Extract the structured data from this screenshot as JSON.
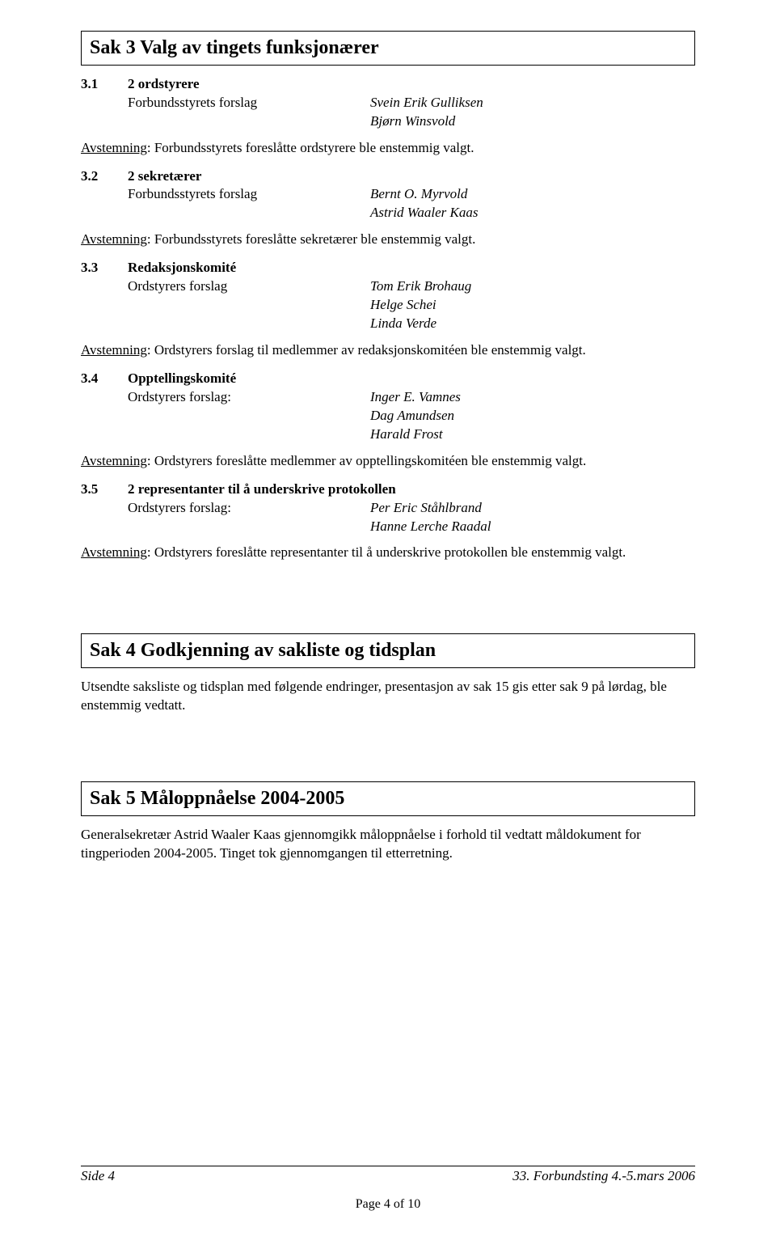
{
  "sak3": {
    "title": "Sak 3   Valg av tingets funksjonærer",
    "s31": {
      "num": "3.1",
      "head": "2 ordstyrere",
      "label": "Forbundsstyrets forslag",
      "names": [
        "Svein Erik Gulliksen",
        "Bjørn Winsvold"
      ],
      "vote_u": "Avstemning",
      "vote_rest": ": Forbundsstyrets foreslåtte ordstyrere ble enstemmig valgt."
    },
    "s32": {
      "num": "3.2",
      "head": "2 sekretærer",
      "label": "Forbundsstyrets forslag",
      "names": [
        "Bernt O. Myrvold",
        "Astrid Waaler Kaas"
      ],
      "vote_u": "Avstemning",
      "vote_rest": ": Forbundsstyrets foreslåtte sekretærer ble enstemmig valgt."
    },
    "s33": {
      "num": "3.3",
      "head": "Redaksjonskomité",
      "label": "Ordstyrers forslag",
      "names": [
        "Tom Erik Brohaug",
        "Helge Schei",
        "Linda Verde"
      ],
      "vote_u": "Avstemning",
      "vote_rest": ": Ordstyrers forslag til medlemmer av redaksjonskomitéen ble enstemmig valgt."
    },
    "s34": {
      "num": "3.4",
      "head": "Opptellingskomité",
      "label": "Ordstyrers forslag:",
      "names": [
        "Inger E. Vamnes",
        "Dag Amundsen",
        "Harald Frost"
      ],
      "vote_u": "Avstemning",
      "vote_rest": ": Ordstyrers foreslåtte medlemmer av opptellingskomitéen ble enstemmig valgt."
    },
    "s35": {
      "num": "3.5",
      "head": "2 representanter til å underskrive protokollen",
      "label": "Ordstyrers forslag:",
      "names": [
        "Per Eric Ståhlbrand",
        "Hanne Lerche Raadal"
      ],
      "vote_u": "Avstemning",
      "vote_rest": ": Ordstyrers foreslåtte representanter til å underskrive protokollen ble enstemmig valgt."
    }
  },
  "sak4": {
    "title": "Sak 4   Godkjenning av sakliste og tidsplan",
    "para": "Utsendte saksliste og tidsplan med følgende endringer, presentasjon av sak 15 gis etter sak 9 på lørdag, ble enstemmig vedtatt."
  },
  "sak5": {
    "title": "Sak 5   Måloppnåelse 2004-2005",
    "para": "Generalsekretær Astrid Waaler Kaas gjennomgikk måloppnåelse i forhold til vedtatt måldokument for tingperioden 2004-2005. Tinget tok gjennomgangen til etterretning."
  },
  "footer": {
    "left": "Side 4",
    "right": "33. Forbundsting 4.-5.mars 2006",
    "pagenum": "Page 4 of 10"
  }
}
